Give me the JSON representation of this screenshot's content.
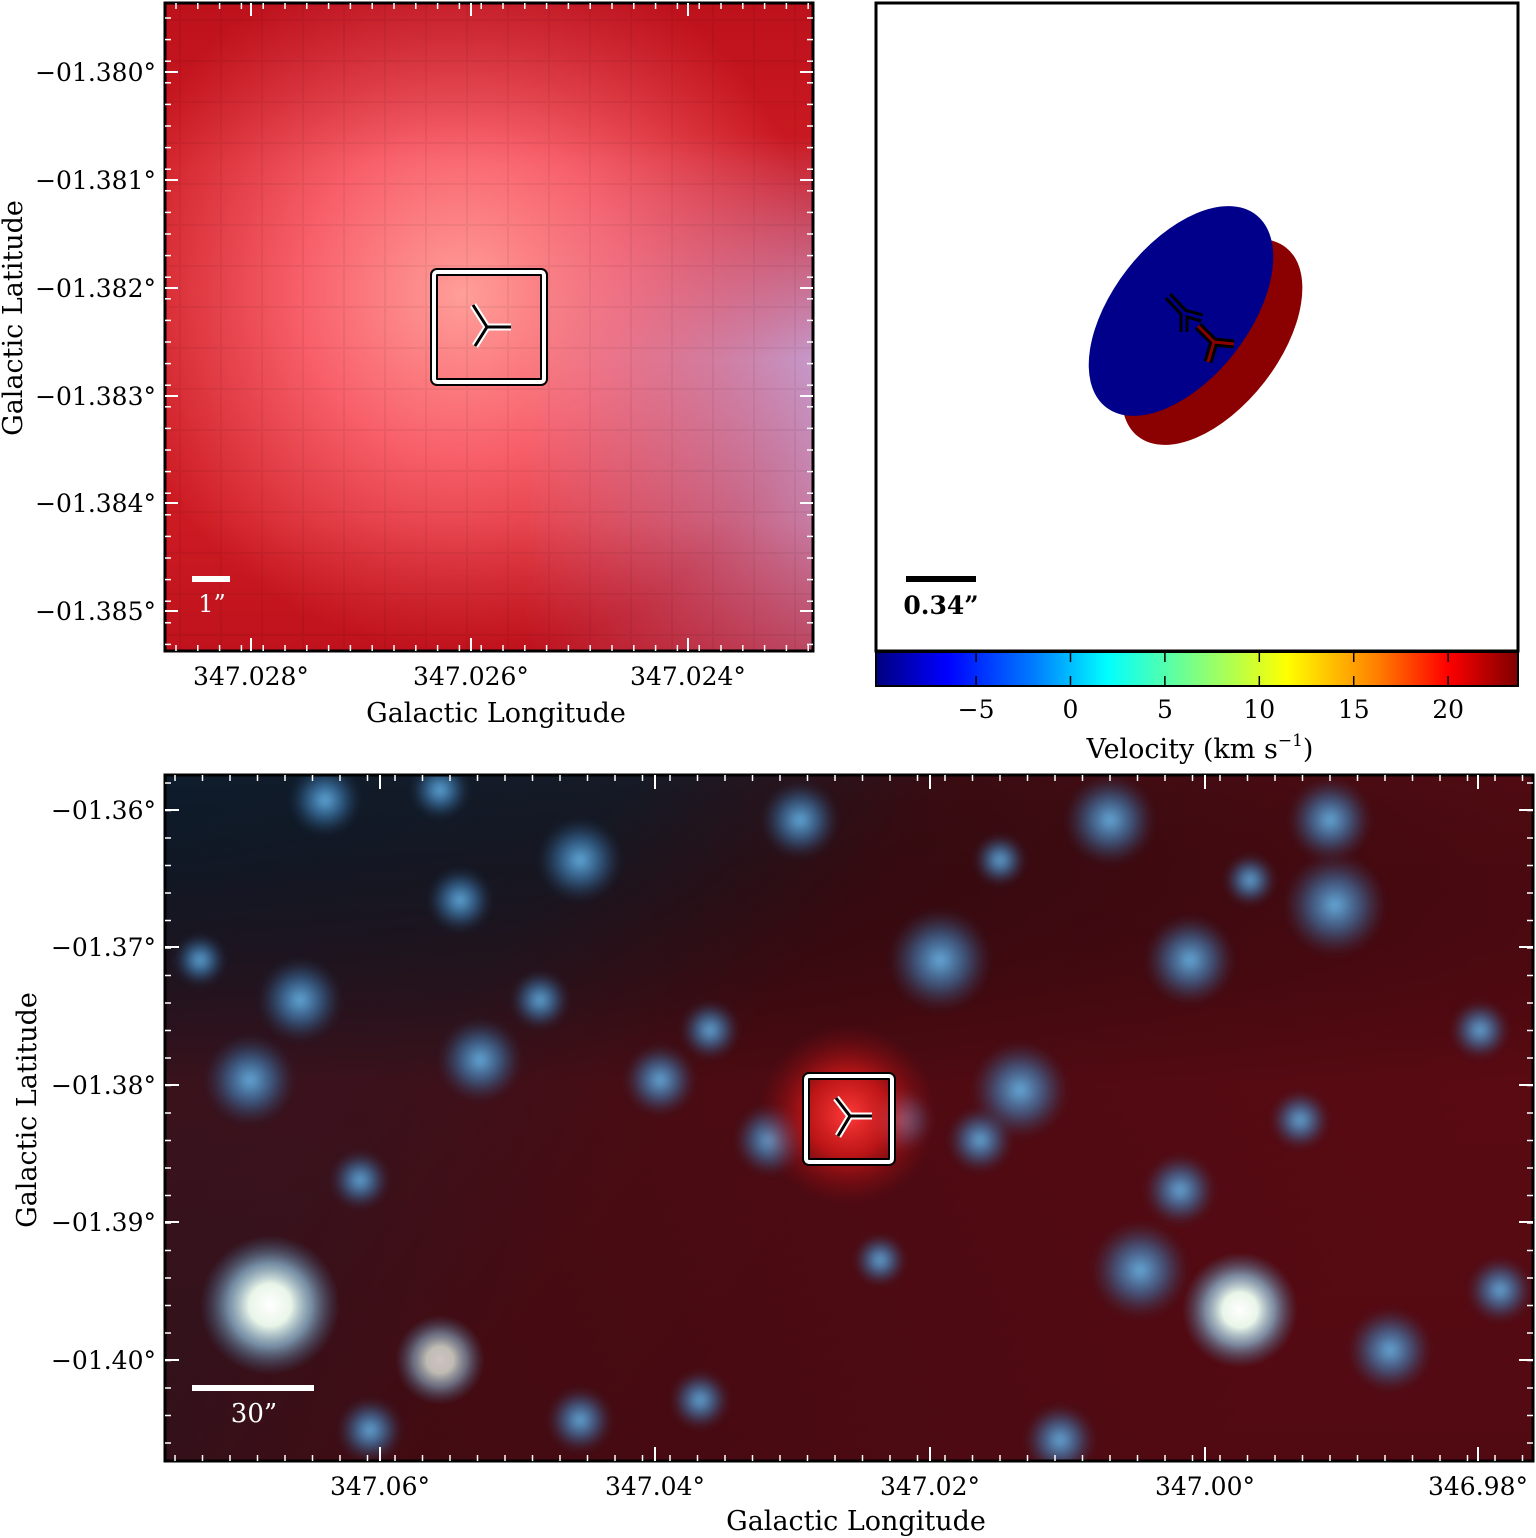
{
  "figure": {
    "top_left": {
      "xlabel": "Galactic Longitude",
      "ylabel": "Galactic Latitude",
      "xticks": [
        "347.028°",
        "347.026°",
        "347.024°"
      ],
      "yticks": [
        "−01.380°",
        "−01.381°",
        "−01.382°",
        "−01.383°",
        "−01.384°",
        "−01.385°"
      ],
      "scalebar_label": "1”"
    },
    "top_right": {
      "scalebar_label": "0.34”",
      "colorbar": {
        "label": "Velocity (km s",
        "label_exp": "−1",
        "label_close": ")",
        "ticks": [
          "−5",
          "0",
          "5",
          "10",
          "15",
          "20"
        ],
        "tick_values": [
          -5,
          0,
          5,
          10,
          15,
          20
        ],
        "range": [
          -10.3,
          23.7
        ],
        "colors": [
          "#00007f",
          "#0000ff",
          "#0080ff",
          "#00ffff",
          "#80ff80",
          "#ffff00",
          "#ff8000",
          "#ff0000",
          "#7f0000"
        ]
      },
      "components": [
        {
          "name": "blue-component",
          "color": "#00008b"
        },
        {
          "name": "red-component",
          "color": "#8b0000"
        }
      ]
    },
    "bottom": {
      "xlabel": "Galactic Longitude",
      "ylabel": "Galactic Latitude",
      "xticks": [
        "347.06°",
        "347.04°",
        "347.02°",
        "347.00°",
        "346.98°"
      ],
      "yticks": [
        "−01.36°",
        "−01.37°",
        "−01.38°",
        "−01.39°",
        "−01.40°"
      ],
      "scalebar_label": "30”"
    }
  }
}
